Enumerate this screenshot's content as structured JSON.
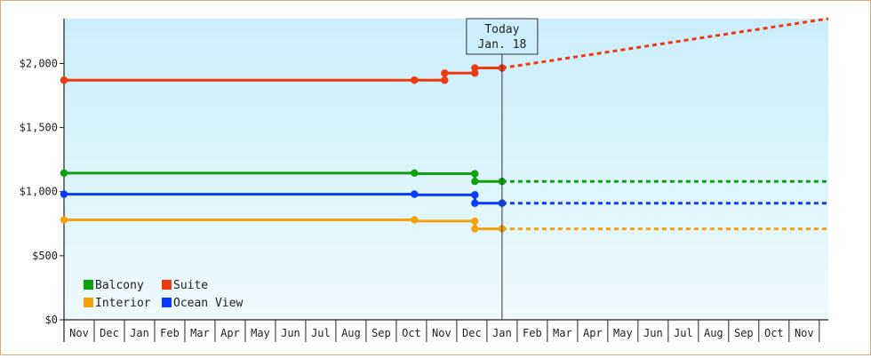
{
  "chart_data": {
    "type": "line",
    "title": "",
    "xlabel": "",
    "ylabel": "",
    "ylim": [
      0,
      2350
    ],
    "y_ticks": [
      0,
      500,
      1000,
      1500,
      2000
    ],
    "y_tick_labels": [
      "$0",
      "$500",
      "$1,000",
      "$1,500",
      "$2,000"
    ],
    "x_tick_labels": [
      "Nov",
      "Dec",
      "Jan",
      "Feb",
      "Mar",
      "Apr",
      "May",
      "Jun",
      "Jul",
      "Aug",
      "Sep",
      "Oct",
      "Nov",
      "Dec",
      "Jan",
      "Feb",
      "Mar",
      "Apr",
      "May",
      "Jun",
      "Jul",
      "Aug",
      "Sep",
      "Oct",
      "Nov"
    ],
    "x_unit": "month index from start (Nov = 0)",
    "x_range": [
      0,
      25.3
    ],
    "today_x": 14.5,
    "today_label_line1": "Today",
    "today_label_line2": "Jan. 18",
    "grid": false,
    "legend_position": "bottom-left",
    "series": [
      {
        "name": "Suite",
        "color": "#ee3a0e",
        "points": [
          [
            0,
            1870
          ],
          [
            11.6,
            1870
          ],
          [
            11.6,
            1870
          ],
          [
            12.6,
            1870
          ],
          [
            12.6,
            1925
          ],
          [
            13.6,
            1925
          ],
          [
            13.6,
            1965
          ],
          [
            14.5,
            1965
          ]
        ],
        "dots": [
          [
            0,
            1870
          ],
          [
            11.6,
            1870
          ],
          [
            12.6,
            1870
          ],
          [
            12.6,
            1925
          ],
          [
            13.6,
            1925
          ],
          [
            13.6,
            1965
          ],
          [
            14.5,
            1965
          ]
        ],
        "forecast": [
          [
            14.5,
            1965
          ],
          [
            25.3,
            2350
          ]
        ]
      },
      {
        "name": "Balcony",
        "color": "#0ea10e",
        "points": [
          [
            0,
            1145
          ],
          [
            11.6,
            1145
          ],
          [
            11.6,
            1140
          ],
          [
            13.6,
            1140
          ],
          [
            13.6,
            1080
          ],
          [
            14.5,
            1080
          ]
        ],
        "dots": [
          [
            0,
            1145
          ],
          [
            11.6,
            1145
          ],
          [
            13.6,
            1140
          ],
          [
            13.6,
            1080
          ],
          [
            14.5,
            1080
          ]
        ],
        "forecast": [
          [
            14.5,
            1080
          ],
          [
            25.3,
            1080
          ]
        ]
      },
      {
        "name": "Ocean View",
        "color": "#0a3cff",
        "points": [
          [
            0,
            980
          ],
          [
            11.6,
            980
          ],
          [
            11.6,
            975
          ],
          [
            13.6,
            975
          ],
          [
            13.6,
            910
          ],
          [
            14.5,
            910
          ]
        ],
        "dots": [
          [
            0,
            980
          ],
          [
            11.6,
            980
          ],
          [
            13.6,
            975
          ],
          [
            13.6,
            910
          ],
          [
            14.5,
            910
          ]
        ],
        "forecast": [
          [
            14.5,
            910
          ],
          [
            25.3,
            910
          ]
        ]
      },
      {
        "name": "Interior",
        "color": "#f4a20a",
        "points": [
          [
            0,
            780
          ],
          [
            11.6,
            780
          ],
          [
            11.6,
            770
          ],
          [
            13.6,
            770
          ],
          [
            13.6,
            710
          ],
          [
            14.5,
            710
          ]
        ],
        "dots": [
          [
            0,
            780
          ],
          [
            11.6,
            780
          ],
          [
            13.6,
            770
          ],
          [
            13.6,
            710
          ],
          [
            14.5,
            710
          ]
        ],
        "forecast": [
          [
            14.5,
            710
          ],
          [
            25.3,
            710
          ]
        ]
      }
    ],
    "legend": [
      {
        "label": "Balcony",
        "color": "#0ea10e"
      },
      {
        "label": "Suite",
        "color": "#ee3a0e"
      },
      {
        "label": "Interior",
        "color": "#f4a20a"
      },
      {
        "label": "Ocean View",
        "color": "#0a3cff"
      }
    ]
  }
}
